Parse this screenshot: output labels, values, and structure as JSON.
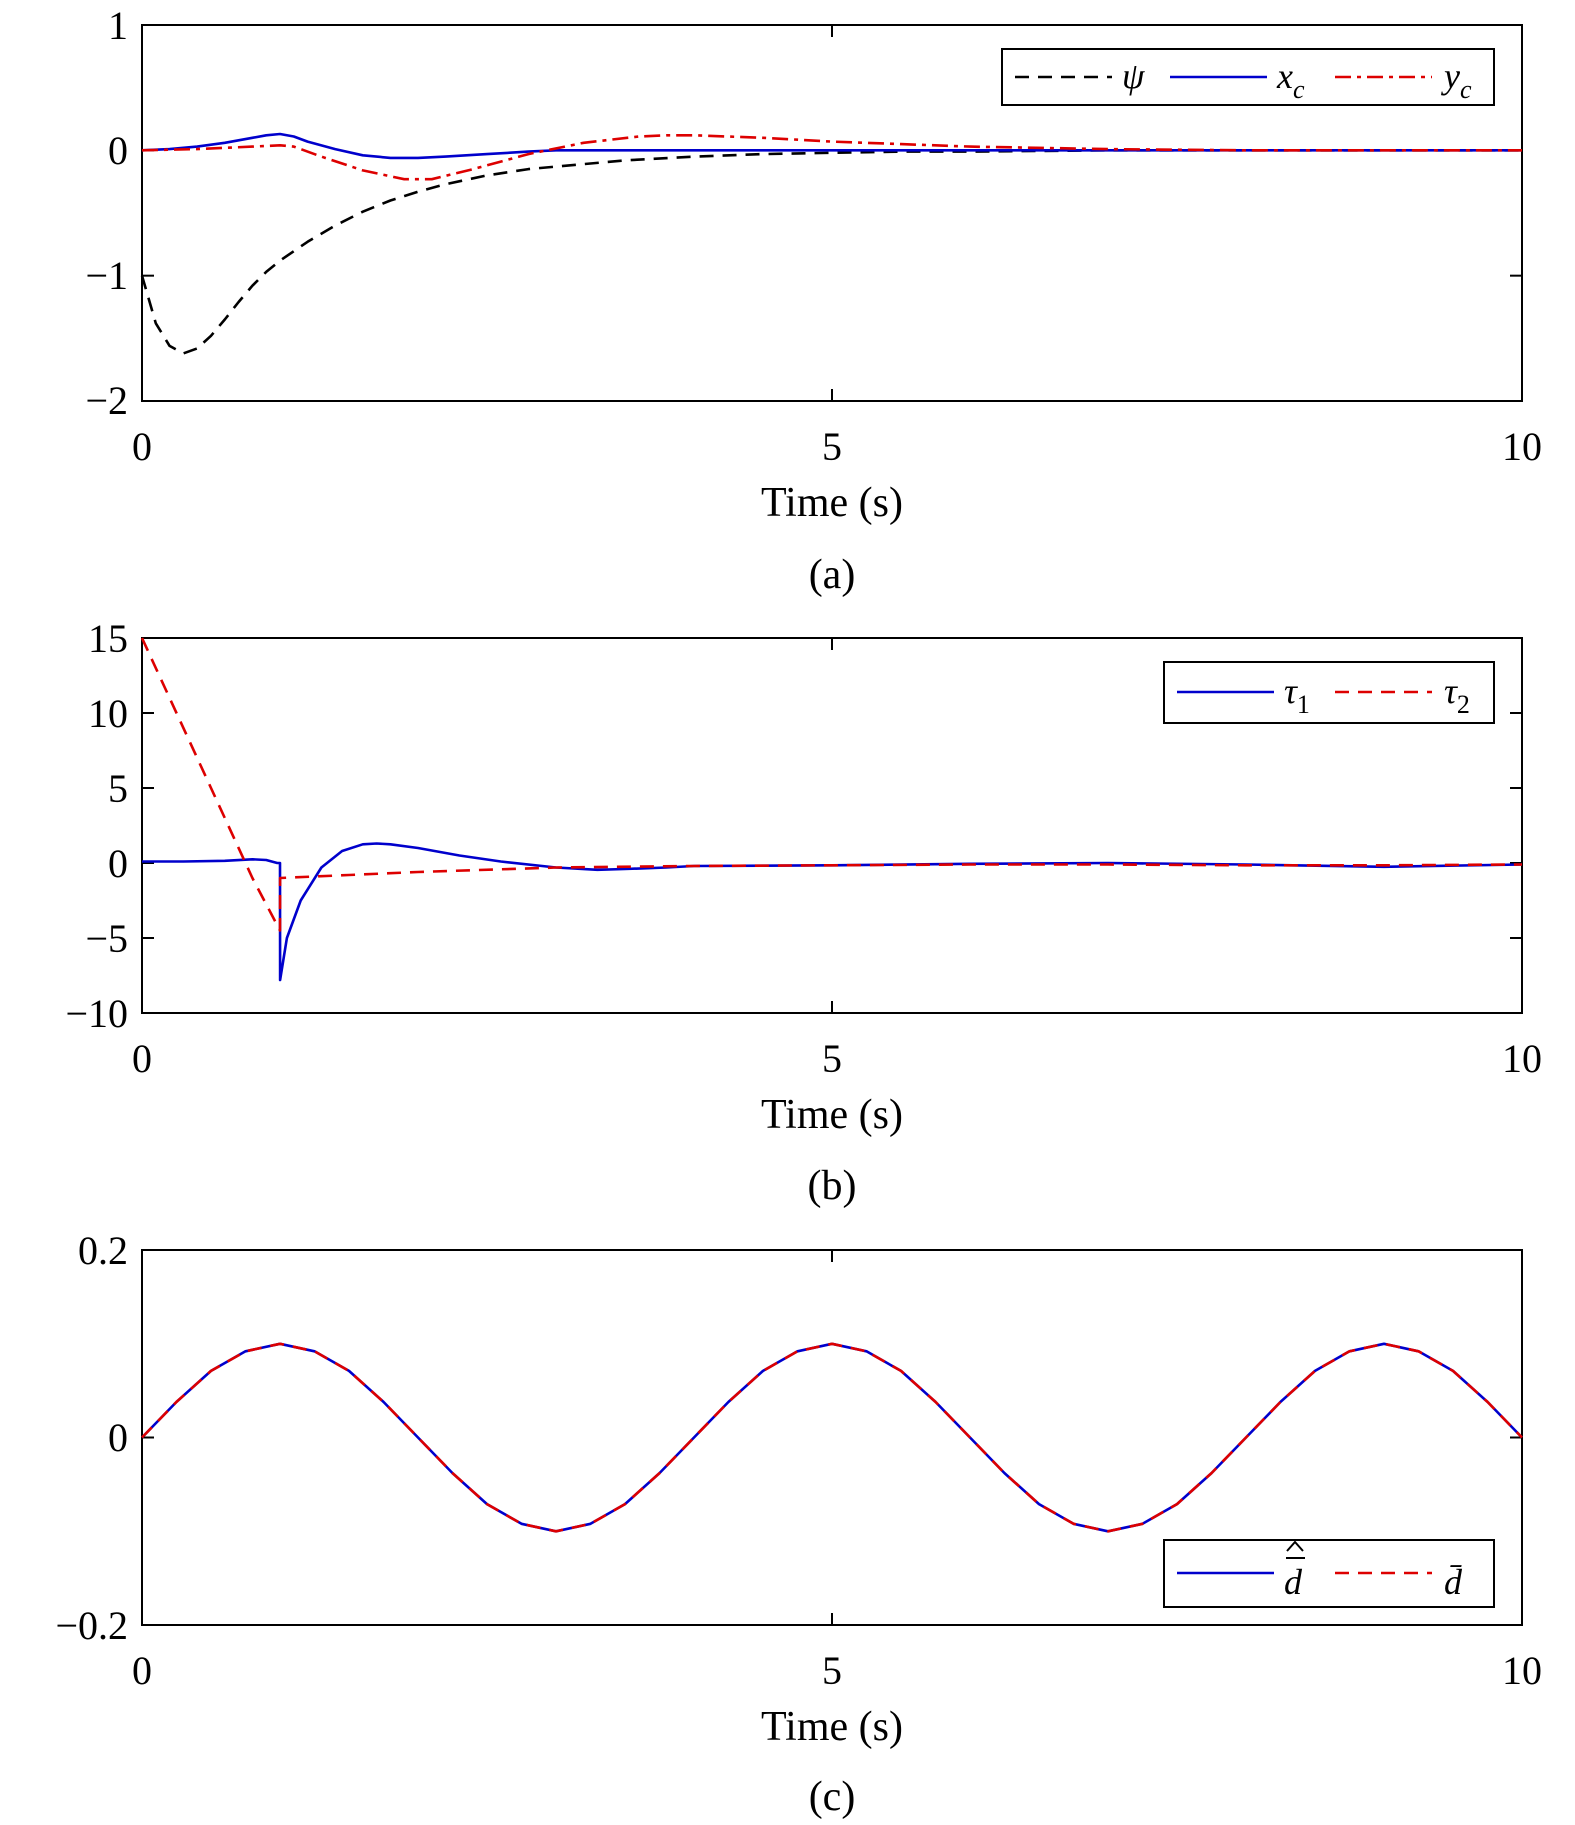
{
  "colors": {
    "black": "#000000",
    "blue": "#0000cc",
    "red": "#dd0000"
  },
  "chart_data": [
    {
      "type": "line",
      "caption": "(a)",
      "xlabel": "Time (s)",
      "xlim": [
        0,
        10
      ],
      "ylim": [
        -2,
        1
      ],
      "xticks": [
        0,
        5,
        10
      ],
      "xtick_labels": [
        "0",
        "5",
        "10"
      ],
      "yticks": [
        -2,
        -1,
        0,
        1
      ],
      "ytick_labels": [
        "−2",
        "−1",
        "0",
        "1"
      ],
      "grid": false,
      "legend_position": "top-right",
      "series": [
        {
          "name": "ψ",
          "color": "#000000",
          "dash": "dashed",
          "x": [
            0,
            0.1,
            0.2,
            0.3,
            0.4,
            0.5,
            0.6,
            0.7,
            0.8,
            0.9,
            1.0,
            1.2,
            1.4,
            1.6,
            1.8,
            2.0,
            2.2,
            2.5,
            2.8,
            3.0,
            3.5,
            4.0,
            4.5,
            5.0,
            5.5,
            6.0,
            7.0,
            8.0,
            9.0,
            10.0
          ],
          "y": [
            -1.0,
            -1.38,
            -1.56,
            -1.62,
            -1.58,
            -1.48,
            -1.35,
            -1.21,
            -1.08,
            -0.97,
            -0.88,
            -0.73,
            -0.6,
            -0.49,
            -0.4,
            -0.33,
            -0.27,
            -0.2,
            -0.15,
            -0.13,
            -0.08,
            -0.05,
            -0.03,
            -0.02,
            -0.01,
            -0.01,
            0,
            0,
            0,
            0
          ]
        },
        {
          "name": "x_c",
          "color": "#0000cc",
          "dash": "solid",
          "x": [
            0,
            0.2,
            0.4,
            0.6,
            0.8,
            0.9,
            1.0,
            1.1,
            1.2,
            1.4,
            1.6,
            1.8,
            2.0,
            2.2,
            2.5,
            2.8,
            3.0,
            3.5,
            4.0,
            5.0,
            6.0,
            7.0,
            8.0,
            9.0,
            10.0
          ],
          "y": [
            0,
            0.01,
            0.03,
            0.06,
            0.1,
            0.12,
            0.13,
            0.11,
            0.07,
            0.01,
            -0.04,
            -0.06,
            -0.06,
            -0.05,
            -0.03,
            -0.01,
            0,
            0,
            0,
            0,
            0,
            0,
            0,
            0,
            0
          ]
        },
        {
          "name": "y_c",
          "color": "#dd0000",
          "dash": "dashdot",
          "x": [
            0,
            0.4,
            0.8,
            1.0,
            1.1,
            1.3,
            1.6,
            1.9,
            2.1,
            2.4,
            2.8,
            3.2,
            3.6,
            3.8,
            4.0,
            4.5,
            5.0,
            5.5,
            6.0,
            7.0,
            8.0,
            9.0,
            10.0
          ],
          "y": [
            0,
            0.01,
            0.03,
            0.04,
            0.03,
            -0.05,
            -0.16,
            -0.23,
            -0.23,
            -0.15,
            -0.03,
            0.06,
            0.11,
            0.12,
            0.12,
            0.1,
            0.07,
            0.05,
            0.03,
            0.01,
            0,
            0,
            0
          ]
        }
      ]
    },
    {
      "type": "line",
      "caption": "(b)",
      "xlabel": "Time (s)",
      "xlim": [
        0,
        10
      ],
      "ylim": [
        -10,
        15
      ],
      "xticks": [
        0,
        5,
        10
      ],
      "xtick_labels": [
        "0",
        "5",
        "10"
      ],
      "yticks": [
        -10,
        -5,
        0,
        5,
        10,
        15
      ],
      "ytick_labels": [
        "−10",
        "−5",
        "0",
        "5",
        "10",
        "15"
      ],
      "grid": false,
      "legend_position": "top-right",
      "series": [
        {
          "name": "τ_1",
          "color": "#0000cc",
          "dash": "solid",
          "x": [
            0,
            0.3,
            0.6,
            0.8,
            0.9,
            0.98,
            1.0,
            1.001,
            1.05,
            1.15,
            1.3,
            1.45,
            1.6,
            1.7,
            1.8,
            2.0,
            2.3,
            2.6,
            3.0,
            3.3,
            3.5,
            3.8,
            4.0,
            5.0,
            6.0,
            7.0,
            8.0,
            9.0,
            10.0
          ],
          "y": [
            0.1,
            0.1,
            0.15,
            0.25,
            0.2,
            0.0,
            0.0,
            -7.8,
            -5.0,
            -2.5,
            -0.3,
            0.8,
            1.25,
            1.3,
            1.25,
            1.0,
            0.5,
            0.1,
            -0.3,
            -0.45,
            -0.4,
            -0.3,
            -0.2,
            -0.15,
            -0.05,
            0.0,
            -0.1,
            -0.25,
            -0.1
          ]
        },
        {
          "name": "τ_2",
          "color": "#dd0000",
          "dash": "dashed",
          "x": [
            0,
            0.2,
            0.4,
            0.6,
            0.8,
            1.0,
            1.001,
            1.5,
            2.0,
            3.0,
            4.0,
            5.0,
            6.0,
            7.0,
            8.0,
            9.0,
            10.0
          ],
          "y": [
            15,
            11.0,
            7.0,
            3.0,
            -1.0,
            -4.5,
            -1.0,
            -0.8,
            -0.6,
            -0.3,
            -0.2,
            -0.15,
            -0.1,
            -0.1,
            -0.15,
            -0.15,
            -0.1
          ]
        }
      ]
    },
    {
      "type": "line",
      "caption": "(c)",
      "xlabel": "Time (s)",
      "xlim": [
        0,
        10
      ],
      "ylim": [
        -0.2,
        0.2
      ],
      "xticks": [
        0,
        5,
        10
      ],
      "xtick_labels": [
        "0",
        "5",
        "10"
      ],
      "yticks": [
        -0.2,
        0,
        0.2
      ],
      "ytick_labels": [
        "−0.2",
        "0",
        "0.2"
      ],
      "grid": false,
      "legend_position": "bottom-right",
      "function": "0.1·sin(2π·t/4)",
      "series": [
        {
          "name": "d̄ estimate",
          "color": "#0000cc",
          "dash": "solid",
          "x": [
            0,
            0.25,
            0.5,
            0.75,
            1.0,
            1.25,
            1.5,
            1.75,
            2.0,
            2.25,
            2.5,
            2.75,
            3.0,
            3.25,
            3.5,
            3.75,
            4.0,
            4.25,
            4.5,
            4.75,
            5.0,
            5.25,
            5.5,
            5.75,
            6.0,
            6.25,
            6.5,
            6.75,
            7.0,
            7.25,
            7.5,
            7.75,
            8.0,
            8.25,
            8.5,
            8.75,
            9.0,
            9.25,
            9.5,
            9.75,
            10.0
          ],
          "y": [
            0,
            0.038,
            0.071,
            0.092,
            0.1,
            0.092,
            0.071,
            0.038,
            0,
            -0.038,
            -0.071,
            -0.092,
            -0.1,
            -0.092,
            -0.071,
            -0.038,
            0,
            0.038,
            0.071,
            0.092,
            0.1,
            0.092,
            0.071,
            0.038,
            0,
            -0.038,
            -0.071,
            -0.092,
            -0.1,
            -0.092,
            -0.071,
            -0.038,
            0,
            0.038,
            0.071,
            0.092,
            0.1,
            0.092,
            0.071,
            0.038,
            0
          ]
        },
        {
          "name": "d̄",
          "color": "#dd0000",
          "dash": "dashed",
          "x": [
            0,
            0.25,
            0.5,
            0.75,
            1.0,
            1.25,
            1.5,
            1.75,
            2.0,
            2.25,
            2.5,
            2.75,
            3.0,
            3.25,
            3.5,
            3.75,
            4.0,
            4.25,
            4.5,
            4.75,
            5.0,
            5.25,
            5.5,
            5.75,
            6.0,
            6.25,
            6.5,
            6.75,
            7.0,
            7.25,
            7.5,
            7.75,
            8.0,
            8.25,
            8.5,
            8.75,
            9.0,
            9.25,
            9.5,
            9.75,
            10.0
          ],
          "y": [
            0,
            0.038,
            0.071,
            0.092,
            0.1,
            0.092,
            0.071,
            0.038,
            0,
            -0.038,
            -0.071,
            -0.092,
            -0.1,
            -0.092,
            -0.071,
            -0.038,
            0,
            0.038,
            0.071,
            0.092,
            0.1,
            0.092,
            0.071,
            0.038,
            0,
            -0.038,
            -0.071,
            -0.092,
            -0.1,
            -0.092,
            -0.071,
            -0.038,
            0,
            0.038,
            0.071,
            0.092,
            0.1,
            0.092,
            0.071,
            0.038,
            0
          ]
        }
      ]
    }
  ]
}
